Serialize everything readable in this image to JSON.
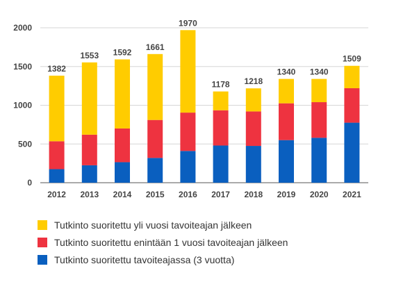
{
  "chart_data": {
    "type": "bar",
    "stacked": true,
    "categories": [
      "2012",
      "2013",
      "2014",
      "2015",
      "2016",
      "2017",
      "2018",
      "2019",
      "2020",
      "2021"
    ],
    "series": [
      {
        "name": "Tutkinto suoritettu tavoiteajassa (3 vuotta)",
        "color": "#0a5fbf",
        "values": [
          175,
          225,
          265,
          320,
          410,
          480,
          475,
          550,
          580,
          775
        ]
      },
      {
        "name": "Tutkinto suoritettu enintään 1 vuosi tavoiteajan jälkeen",
        "color": "#ee3340",
        "values": [
          360,
          395,
          435,
          490,
          495,
          455,
          445,
          475,
          460,
          445
        ]
      },
      {
        "name": "Tutkinto suoritettu yli vuosi tavoiteajan jälkeen",
        "color": "#ffcc00",
        "values": [
          847,
          933,
          892,
          851,
          1065,
          243,
          298,
          315,
          300,
          289
        ]
      }
    ],
    "totals": [
      1382,
      1553,
      1592,
      1661,
      1970,
      1178,
      1218,
      1340,
      1340,
      1509
    ],
    "y_ticks": [
      0,
      500,
      1000,
      1500,
      2000
    ],
    "ylim": [
      0,
      2000
    ],
    "grid": true,
    "legend_position": "bottom"
  },
  "legend_order": [
    2,
    1,
    0
  ]
}
